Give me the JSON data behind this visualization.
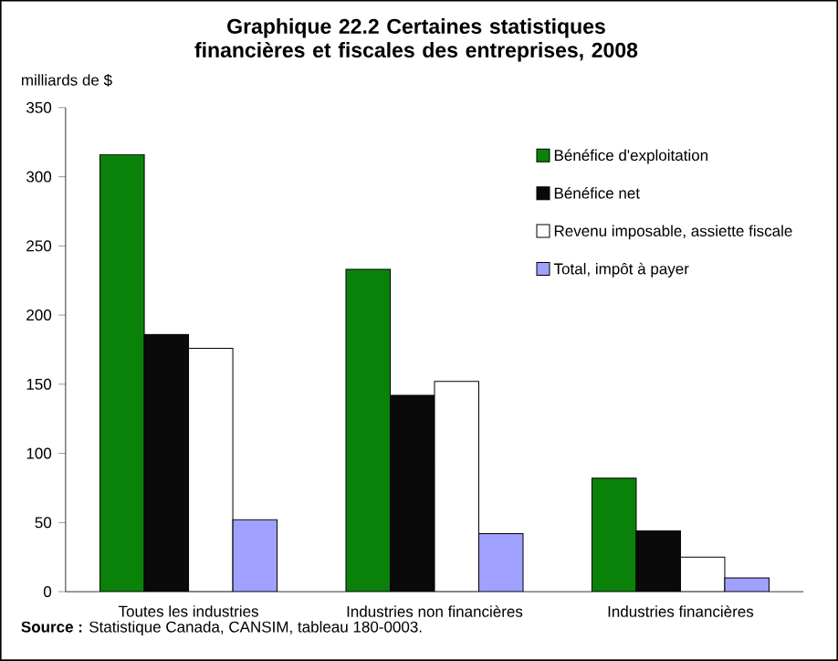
{
  "chart_data": {
    "type": "bar",
    "title": "Graphique 22.2 Certaines statistiques financières et fiscales des entreprises, 2008",
    "ylabel": "milliards de $",
    "categories": [
      "Toutes les industries",
      "Industries non financières",
      "Industries financières"
    ],
    "series": [
      {
        "name": "Bénéfice d'exploitation",
        "color": "#0a820a",
        "values": [
          316,
          233,
          82
        ]
      },
      {
        "name": "Bénéfice net",
        "color": "#0a0a0a",
        "values": [
          186,
          142,
          44
        ]
      },
      {
        "name": "Revenu imposable, assiette fiscale",
        "color": "#ffffff",
        "values": [
          176,
          152,
          25
        ]
      },
      {
        "name": "Total, impôt à payer",
        "color": "#a0a0ff",
        "values": [
          52,
          42,
          10
        ]
      }
    ],
    "ylim": [
      0,
      350
    ],
    "yticks": [
      0,
      50,
      100,
      150,
      200,
      250,
      300,
      350
    ],
    "grid": false,
    "legend": "top right",
    "annotations": [
      "**Source :** Statistique Canada, CANSIM, tableau 180-0003."
    ]
  }
}
